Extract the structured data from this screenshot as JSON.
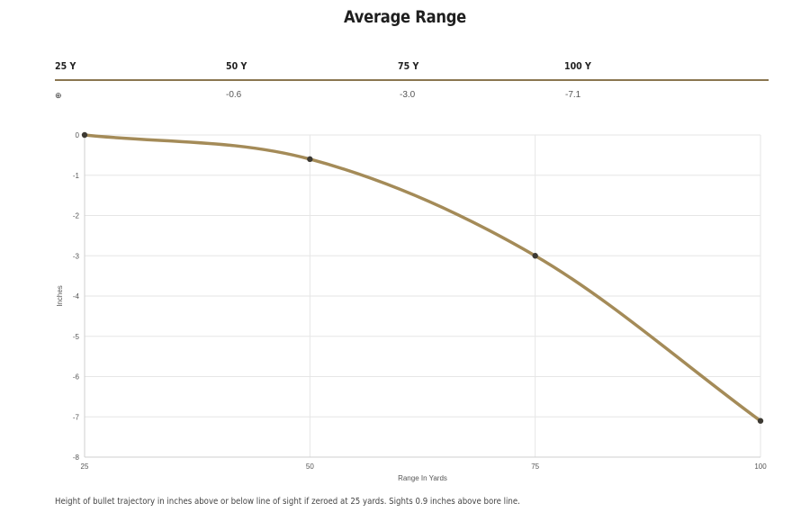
{
  "page": {
    "title": "Average Range"
  },
  "table": {
    "headers": [
      "25 Y",
      "50 Y",
      "75 Y",
      "100 Y"
    ],
    "zero_icon": "⊕",
    "values": [
      "-0.6",
      "-3.0",
      "-7.1"
    ]
  },
  "caption": "Height of bullet trajectory in inches above or below line of sight if zeroed at 25 yards. Sights 0.9 inches above bore line.",
  "colors": {
    "line": "#a48b58",
    "point": "#3d3a33",
    "grid": "#e6e6e6",
    "rule": "#8a7650"
  },
  "chart_data": {
    "type": "line",
    "title": "",
    "xlabel": "Range In Yards",
    "ylabel": "Inches",
    "x": [
      25,
      50,
      75,
      100
    ],
    "series": [
      {
        "name": "",
        "values": [
          0,
          -0.6,
          -3.0,
          -7.1
        ]
      }
    ],
    "xticks": [
      25,
      50,
      75,
      100
    ],
    "yticks": [
      0,
      -1,
      -2,
      -3,
      -4,
      -5,
      -6,
      -7,
      -8
    ],
    "xlim": [
      25,
      100
    ],
    "ylim": [
      -8,
      0
    ],
    "grid": true,
    "legend": "none"
  }
}
